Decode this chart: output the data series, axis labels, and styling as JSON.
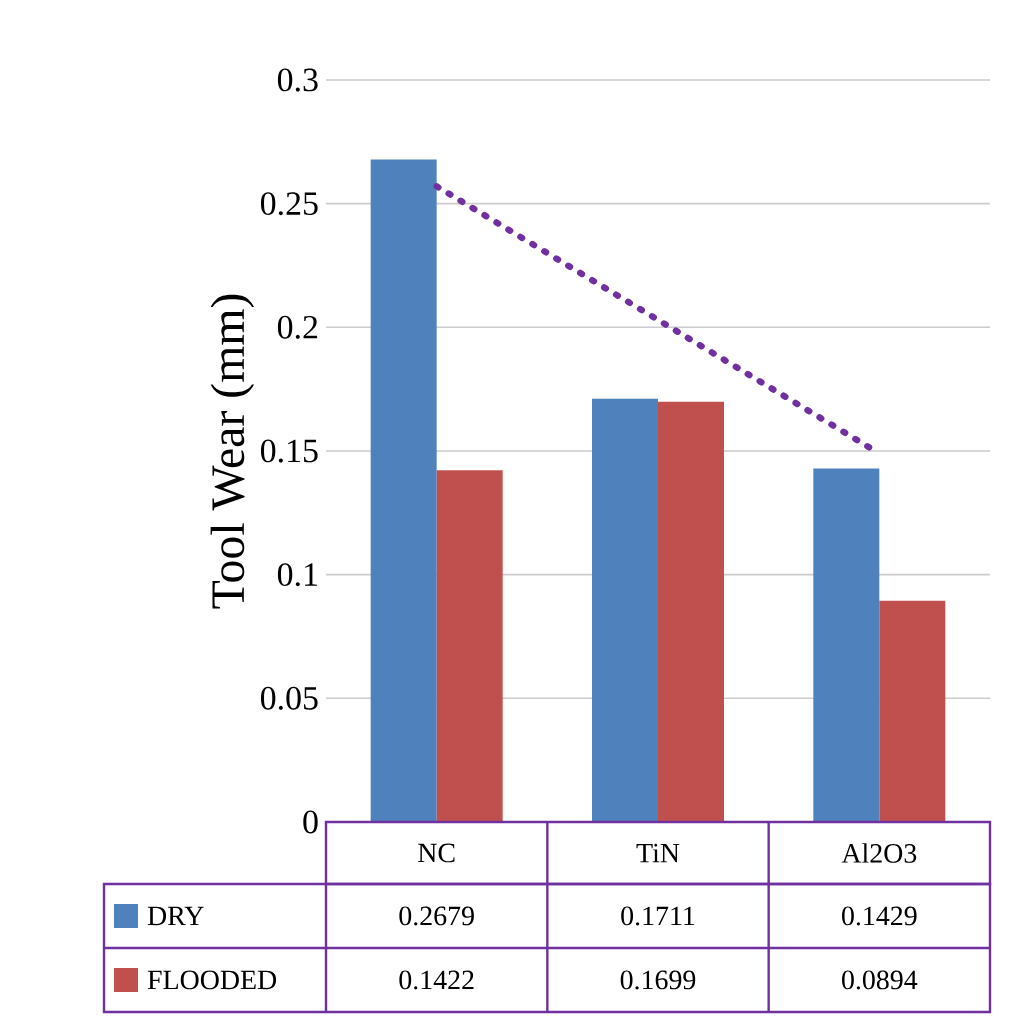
{
  "chart_data": {
    "type": "bar",
    "ylabel": "Tool Wear (mm)",
    "categories": [
      "NC",
      "TiN",
      "Al2O3"
    ],
    "series": [
      {
        "name": "DRY",
        "color": "#4f81bd",
        "values": [
          0.2679,
          0.1711,
          0.1429
        ],
        "value_labels": [
          "0.2679",
          "0.1711",
          "0.1429"
        ]
      },
      {
        "name": "FLOODED",
        "color": "#c0504d",
        "values": [
          0.1422,
          0.1699,
          0.0894
        ],
        "value_labels": [
          "0.1422",
          "0.1699",
          "0.0894"
        ]
      },
      {
        "type": "line",
        "color": "#7030a0",
        "line_style": "dotted",
        "marker": "none",
        "values": [
          0.257,
          0.203,
          0.149
        ]
      }
    ],
    "ylim": [
      0,
      0.3
    ],
    "yticks": [
      0,
      0.05,
      0.1,
      0.15,
      0.2,
      0.25,
      0.3
    ],
    "grid": "y",
    "legend": "bottom"
  }
}
